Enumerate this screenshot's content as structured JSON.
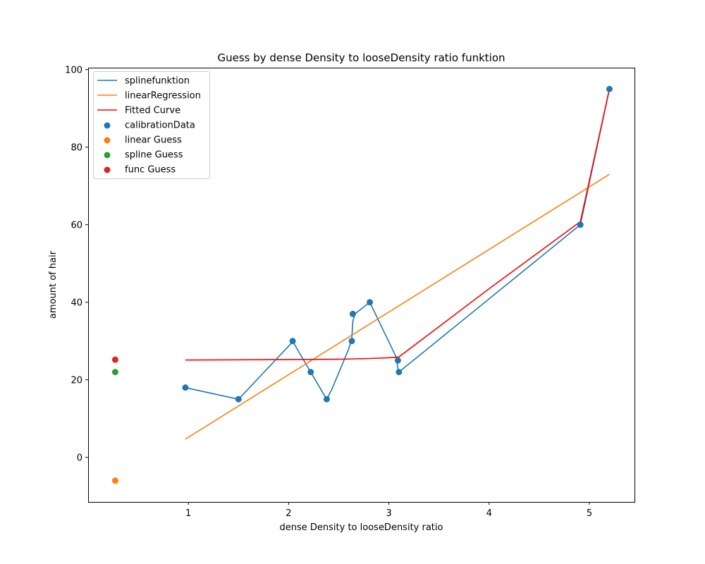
{
  "chart_data": {
    "type": "line",
    "title": "Guess by dense Density to looseDensity ratio funktion",
    "xlabel": "dense Density to looseDensity ratio",
    "ylabel": "amount of hair",
    "xlim": [
      0.0,
      5.45
    ],
    "ylim": [
      -11.5,
      100.5
    ],
    "x_ticks": [
      1,
      2,
      3,
      4,
      5
    ],
    "y_ticks": [
      0,
      20,
      40,
      60,
      80,
      100
    ],
    "grid": false,
    "legend_position": "upper-left",
    "series": [
      {
        "name": "splinefunktion",
        "kind": "line",
        "color": "#1f77b4",
        "x": [
          0.97,
          1.5,
          2.04,
          2.05,
          2.22,
          2.38,
          2.43,
          2.6,
          2.63,
          2.64,
          2.66,
          2.81,
          3.07,
          3.09,
          3.1,
          4.91,
          5.2
        ],
        "y": [
          18,
          15,
          29.8,
          29.5,
          22,
          15,
          17.5,
          28,
          30.5,
          35,
          37,
          40,
          26,
          23,
          22,
          60,
          95
        ]
      },
      {
        "name": "linearRegression",
        "kind": "line",
        "color": "#ff7f0e",
        "x": [
          0.97,
          5.2
        ],
        "y": [
          4.7,
          73
        ]
      },
      {
        "name": "Fitted Curve",
        "kind": "line",
        "color": "#ff0000",
        "x": [
          0.97,
          2.0,
          2.5,
          2.8,
          3.0,
          3.1,
          4.0,
          4.91,
          5.2
        ],
        "y": [
          25.1,
          25.2,
          25.3,
          25.5,
          25.7,
          25.9,
          43.5,
          60.8,
          95
        ]
      },
      {
        "name": "calibrationData",
        "kind": "scatter",
        "color": "#1f77b4",
        "x": [
          0.97,
          1.5,
          2.04,
          2.22,
          2.38,
          2.63,
          2.64,
          2.81,
          3.09,
          3.1,
          4.91,
          5.2
        ],
        "y": [
          18,
          15,
          30,
          22,
          15,
          30,
          37,
          40,
          25,
          22,
          60,
          95
        ]
      },
      {
        "name": "linear Guess",
        "kind": "scatter",
        "color": "#ff7f0e",
        "x": [
          0.27
        ],
        "y": [
          -6
        ]
      },
      {
        "name": "spline Guess",
        "kind": "scatter",
        "color": "#2ca02c",
        "x": [
          0.27
        ],
        "y": [
          22
        ]
      },
      {
        "name": "func Guess",
        "kind": "scatter",
        "color": "#d62728",
        "x": [
          0.27
        ],
        "y": [
          25.2
        ]
      }
    ]
  }
}
